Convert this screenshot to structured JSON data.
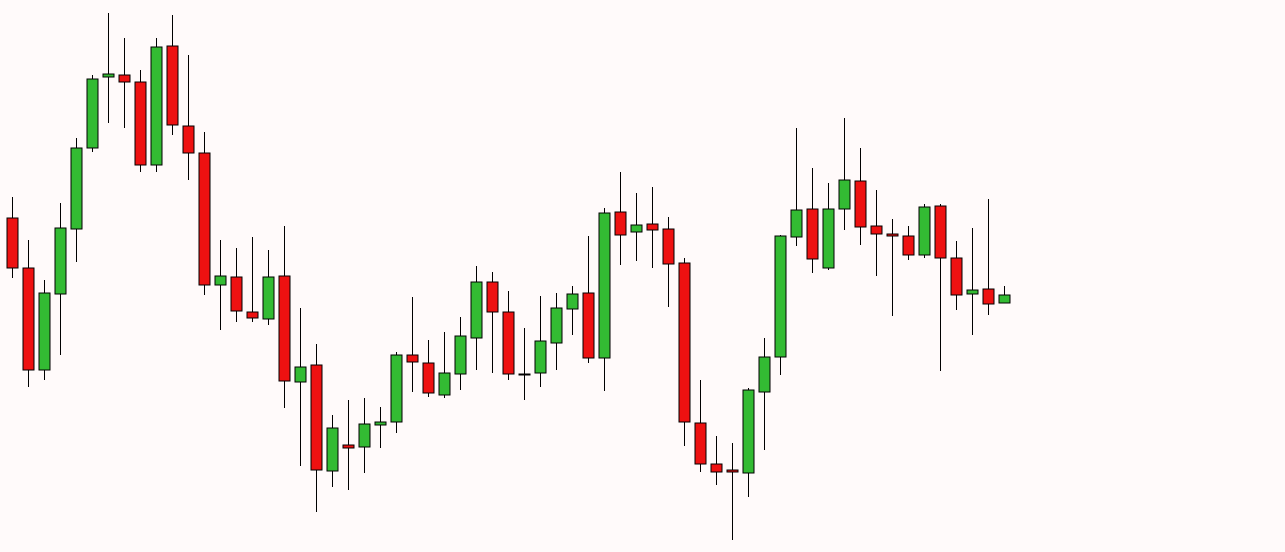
{
  "chart_data": {
    "type": "candlestick",
    "up_color": "#33bb33",
    "down_color": "#ee1111",
    "wick_color": "#000000",
    "ylim": [
      0,
      552
    ],
    "open": [
      334,
      284,
      182,
      258,
      323,
      404,
      475,
      477,
      470,
      387,
      506,
      426,
      399,
      267,
      275,
      240,
      233,
      276,
      170,
      187,
      81,
      107,
      105,
      127,
      130,
      197,
      189,
      157,
      178,
      214,
      270,
      240,
      178,
      179,
      209,
      243,
      259,
      194,
      340,
      320,
      328,
      323,
      289,
      129,
      88,
      82,
      79,
      160,
      195,
      315,
      343,
      284,
      343,
      371,
      326,
      318,
      316,
      297,
      346,
      294,
      258,
      263,
      249
    ],
    "high": [
      355,
      312,
      272,
      349,
      414,
      477,
      539,
      514,
      482,
      514,
      537,
      497,
      420,
      312,
      304,
      315,
      302,
      326,
      244,
      208,
      137,
      152,
      154,
      145,
      200,
      255,
      212,
      220,
      235,
      286,
      280,
      261,
      224,
      256,
      259,
      266,
      316,
      344,
      380,
      359,
      365,
      335,
      294,
      172,
      116,
      109,
      164,
      214,
      317,
      424,
      384,
      369,
      434,
      404,
      362,
      333,
      326,
      348,
      348,
      311,
      324,
      353,
      266
    ],
    "low": [
      274,
      165,
      172,
      197,
      290,
      400,
      429,
      424,
      380,
      380,
      417,
      372,
      257,
      222,
      230,
      230,
      227,
      144,
      86,
      40,
      65,
      62,
      79,
      104,
      119,
      160,
      155,
      154,
      162,
      182,
      179,
      172,
      152,
      165,
      182,
      217,
      189,
      161,
      287,
      291,
      284,
      245,
      106,
      80,
      67,
      12,
      55,
      102,
      177,
      306,
      279,
      282,
      322,
      307,
      276,
      236,
      292,
      294,
      181,
      242,
      217,
      237,
      249
    ],
    "close": [
      284,
      182,
      259,
      324,
      404,
      473,
      478,
      470,
      387,
      505,
      427,
      399,
      267,
      276,
      241,
      234,
      275,
      171,
      185,
      82,
      124,
      104,
      128,
      130,
      197,
      190,
      159,
      179,
      216,
      270,
      240,
      178,
      178,
      211,
      244,
      258,
      194,
      339,
      317,
      327,
      322,
      288,
      130,
      88,
      80,
      80,
      162,
      195,
      316,
      342,
      293,
      343,
      372,
      325,
      318,
      316,
      297,
      345,
      294,
      257,
      262,
      248,
      257
    ]
  }
}
